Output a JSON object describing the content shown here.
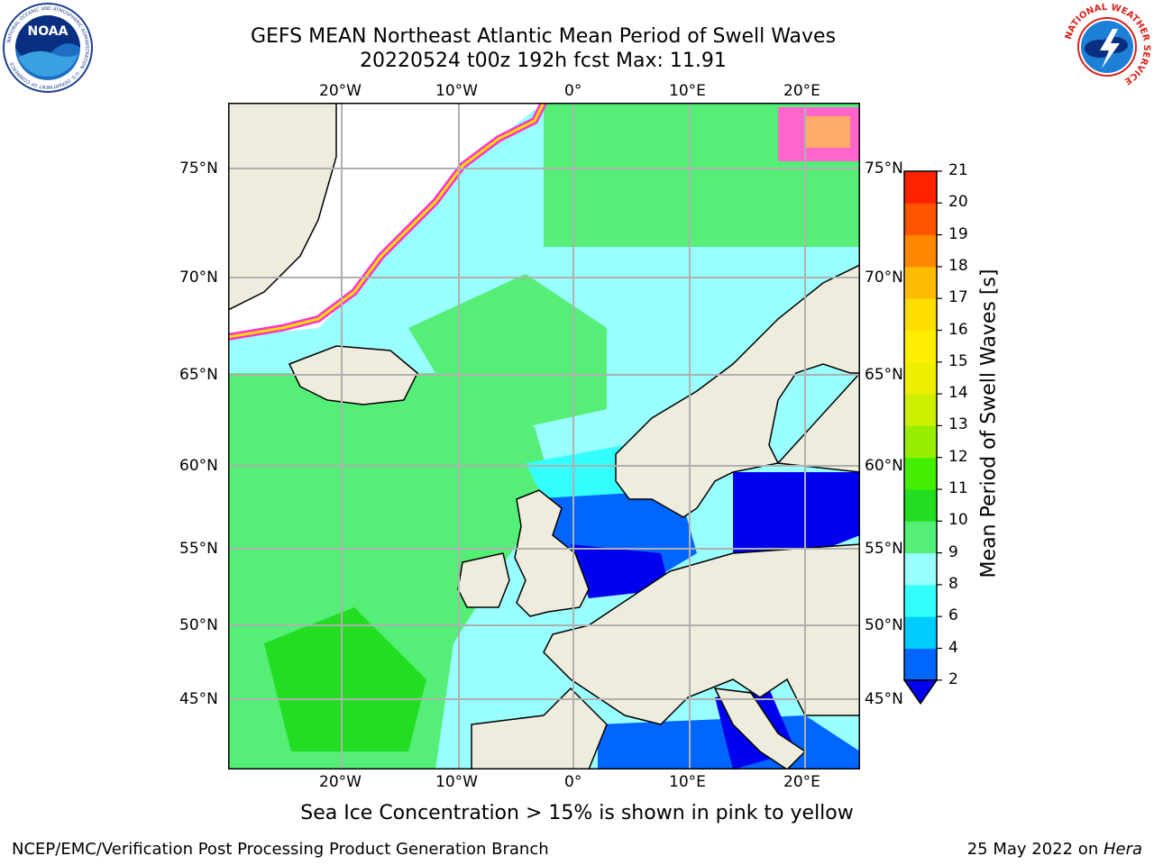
{
  "header": {
    "title": "GEFS MEAN Northeast Atlantic Mean Period of Swell Waves",
    "subtitle": "20220524 t00z 192h fcst   Max: 11.91"
  },
  "logos": {
    "left": {
      "name": "noaa-logo",
      "text": "NOAA",
      "ring_text": "NATIONAL OCEANIC AND ATMOSPHERIC ADMINISTRATION · U.S. DEPARTMENT OF COMMERCE"
    },
    "right": {
      "name": "nws-logo",
      "ring_text": "NATIONAL WEATHER SERVICE"
    }
  },
  "map": {
    "region": "Northeast Atlantic",
    "lon_range": [
      "30°W",
      "25°E"
    ],
    "lat_range": [
      "41°N",
      "78°N"
    ],
    "lon_ticks": [
      "20°W",
      "10°W",
      "0°",
      "10°E",
      "20°E"
    ],
    "lat_ticks": [
      "75°N",
      "70°N",
      "65°N",
      "60°N",
      "55°N",
      "50°N",
      "45°N"
    ],
    "colors": {
      "land": "#eeecdc",
      "grid": "#b0b0b0",
      "coast": "#000000",
      "ice": "#ff33cc"
    }
  },
  "colorbar": {
    "label": "Mean Period of Swell Waves [s]",
    "levels": [
      "2",
      "4",
      "6",
      "8",
      "9",
      "10",
      "11",
      "12",
      "13",
      "14",
      "15",
      "16",
      "17",
      "18",
      "19",
      "20",
      "21"
    ],
    "colors": [
      "#0066ff",
      "#00ccff",
      "#33ffff",
      "#99ffff",
      "#55ee77",
      "#22dd22",
      "#44ee00",
      "#99ee00",
      "#ccee00",
      "#eeee00",
      "#ffee00",
      "#ffdd00",
      "#ffbb00",
      "#ff8800",
      "#ff5500",
      "#ff2200"
    ],
    "under_color": "#0000ee"
  },
  "caption": "Sea Ice Concentration > 15% is shown in pink to yellow",
  "footer": {
    "left": "NCEP/EMC/Verification Post Processing Product Generation Branch",
    "right_prefix": "25 May 2022 on ",
    "right_host": "Hera"
  }
}
